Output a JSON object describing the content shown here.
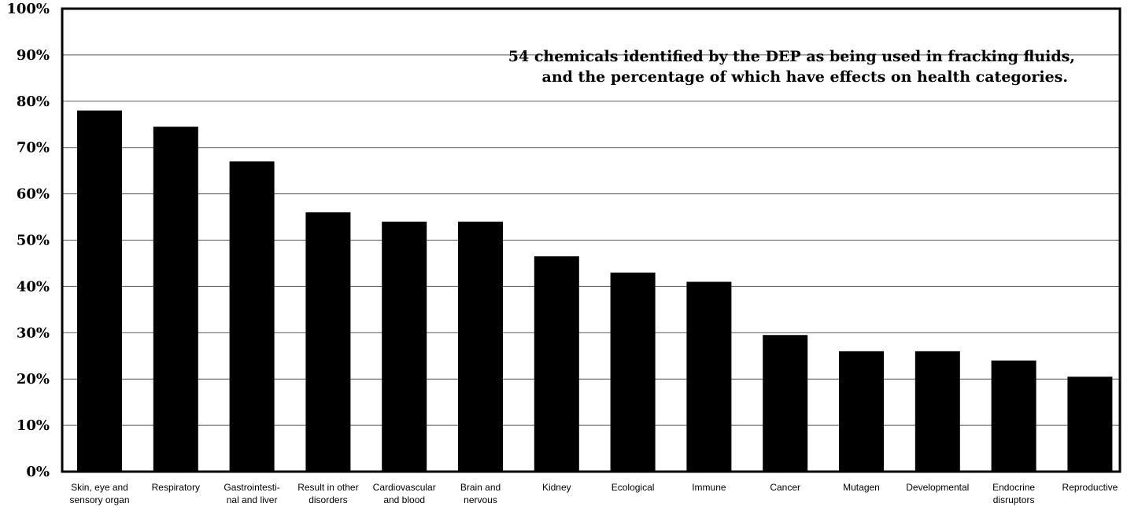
{
  "chart_data": {
    "type": "bar",
    "title": "54 chemicals identified by the DEP as being used in fracking fluids,",
    "subtitle": "and the percentage of which have effects on health categories.",
    "xlabel": "",
    "ylabel": "",
    "ylim": [
      0,
      100
    ],
    "yticks": [
      "0%",
      "10%",
      "20%",
      "30%",
      "40%",
      "50%",
      "60%",
      "70%",
      "80%",
      "90%",
      "100%"
    ],
    "grid": true,
    "bar_color": "#000000",
    "categories": [
      [
        "Skin, eye and",
        "sensory organ"
      ],
      [
        "Respiratory"
      ],
      [
        "Gastrointesti-",
        "nal and liver"
      ],
      [
        "Result in other",
        "disorders"
      ],
      [
        "Cardiovascular",
        "and blood"
      ],
      [
        "Brain and",
        "nervous"
      ],
      [
        "Kidney"
      ],
      [
        "Ecological"
      ],
      [
        "Immune"
      ],
      [
        "Cancer"
      ],
      [
        "Mutagen"
      ],
      [
        "Developmental"
      ],
      [
        "Endocrine",
        "disruptors"
      ],
      [
        "Reproductive"
      ]
    ],
    "values": [
      78,
      74.5,
      67,
      56,
      54,
      54,
      46.5,
      43,
      41,
      29.5,
      26,
      26,
      24,
      20.5
    ]
  }
}
